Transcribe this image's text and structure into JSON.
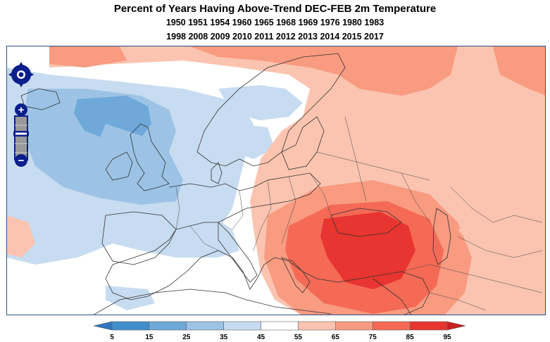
{
  "title": "Percent of Years Having Above-Trend DEC-FEB 2m Temperature",
  "years_line1": "1950 1951 1954 1960 1965 1968 1969 1976 1980 1983",
  "years_line2": "1998 2008 2009 2010 2011 2012 2013 2014 2015 2017",
  "colorbar": {
    "labels": [
      "5",
      "15",
      "25",
      "35",
      "45",
      "55",
      "65",
      "75",
      "85",
      "95"
    ],
    "colors": [
      "#3f8fcb",
      "#6ea9d9",
      "#9cc3e5",
      "#c7dcf0",
      "#ffffff",
      "#fbc4b0",
      "#f89b80",
      "#f46a55",
      "#e8352f"
    ],
    "under_color": "#2f74c0",
    "over_color": "#c81f1f"
  },
  "map_controls": {
    "pan_icon": "pan-arrows-icon",
    "zoom_in": "+",
    "zoom_out": "−"
  }
}
